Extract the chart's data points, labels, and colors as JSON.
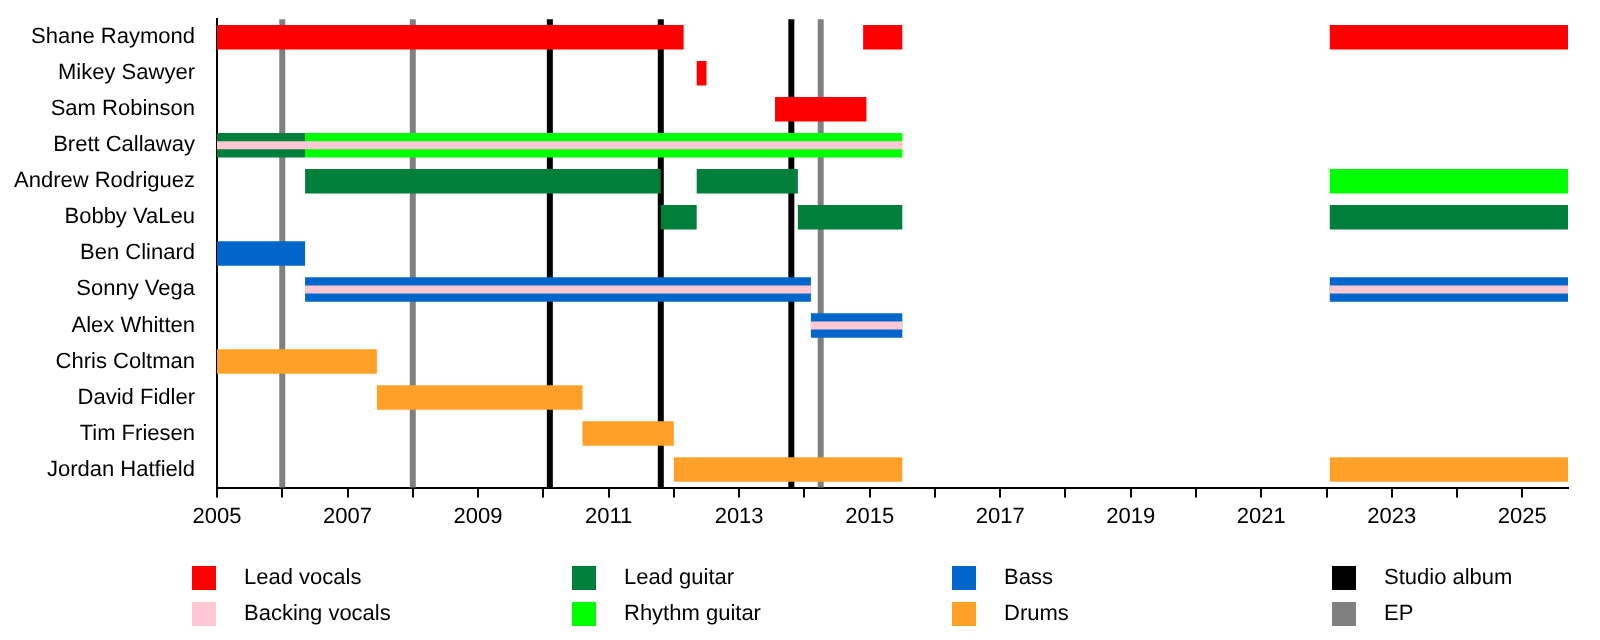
{
  "chart_data": {
    "type": "bar",
    "orientation": "horizontal",
    "grid": false,
    "legend": "bottom",
    "categories": [
      "Shane Raymond",
      "Mikey Sawyer",
      "Sam Robinson",
      "Brett Callaway",
      "Andrew Rodriguez",
      "Bobby VaLeu",
      "Ben Clinard",
      "Sonny Vega",
      "Alex Whitten",
      "Chris Coltman",
      "David Fidler",
      "Tim Friesen",
      "Jordan Hatfield"
    ],
    "xlim": [
      2005,
      2025.7
    ],
    "xticks": [
      2005,
      {
        "value": 2006,
        "label": null
      },
      2007,
      {
        "value": 2008,
        "label": null
      },
      2009,
      {
        "value": 2010,
        "label": null
      },
      2011,
      {
        "value": 2012,
        "label": null
      },
      2013,
      {
        "value": 2014,
        "label": null
      },
      2015,
      {
        "value": 2016,
        "label": null
      },
      2017,
      {
        "value": 2018,
        "label": null
      },
      2019,
      {
        "value": 2020,
        "label": null
      },
      2021,
      {
        "value": 2022,
        "label": null
      },
      2023,
      {
        "value": 2024,
        "label": null
      },
      2025
    ],
    "series": [
      {
        "name": "Lead vocals",
        "color": "#ff0000",
        "base": [
          2005,
          2012.35,
          2013.55,
          null,
          null,
          null,
          null,
          null,
          null,
          null,
          null,
          null,
          null
        ],
        "values": [
          7.15,
          0.15,
          1.4,
          null,
          null,
          null,
          null,
          null,
          null,
          null,
          null,
          null,
          null
        ]
      },
      {
        "color": "#ff0000",
        "base": [
          2014.9,
          null,
          null,
          null,
          null,
          null,
          null,
          null,
          null,
          null,
          null,
          null,
          null
        ],
        "values": [
          0.6,
          null,
          null,
          null,
          null,
          null,
          null,
          null,
          null,
          null,
          null,
          null,
          null
        ]
      },
      {
        "color": "#ff0000",
        "base": [
          2022.05,
          null,
          null,
          null,
          null,
          null,
          null,
          null,
          null,
          null,
          null,
          null,
          null
        ],
        "values": [
          3.65,
          null,
          null,
          null,
          null,
          null,
          null,
          null,
          null,
          null,
          null,
          null,
          null
        ]
      },
      {
        "name": "Backing vocals",
        "color": "#ffc8d2",
        "base": [
          null,
          null,
          null,
          2005,
          null,
          null,
          null,
          2006.35,
          2014.1,
          null,
          null,
          null,
          null
        ],
        "values": [
          null,
          null,
          null,
          10.5,
          null,
          null,
          null,
          7.75,
          1.4,
          null,
          null,
          null,
          null
        ]
      },
      {
        "color": "#ffc8d2",
        "base": [
          null,
          null,
          null,
          null,
          null,
          null,
          null,
          2022.05,
          null,
          null,
          null,
          null,
          null
        ],
        "values": [
          null,
          null,
          null,
          null,
          null,
          null,
          null,
          3.65,
          null,
          null,
          null,
          null,
          null
        ]
      },
      {
        "name": "Lead guitar",
        "color": "#007f3a",
        "base": [
          null,
          null,
          null,
          2005,
          2006.35,
          2011.8,
          null,
          null,
          null,
          null,
          null,
          null,
          null
        ],
        "values": [
          null,
          null,
          null,
          1.35,
          5.45,
          0.55,
          null,
          null,
          null,
          null,
          null,
          null,
          null
        ]
      },
      {
        "color": "#007f3a",
        "base": [
          null,
          null,
          null,
          null,
          2012.35,
          2013.9,
          null,
          null,
          null,
          null,
          null,
          null,
          null
        ],
        "values": [
          null,
          null,
          null,
          null,
          1.55,
          1.6,
          null,
          null,
          null,
          null,
          null,
          null,
          null
        ]
      },
      {
        "color": "#007f3a",
        "base": [
          null,
          null,
          null,
          null,
          null,
          2022.05,
          null,
          null,
          null,
          null,
          null,
          null,
          null
        ],
        "values": [
          null,
          null,
          null,
          null,
          null,
          3.65,
          null,
          null,
          null,
          null,
          null,
          null,
          null
        ]
      },
      {
        "name": "Rhythm guitar",
        "color": "#00ff00",
        "base": [
          null,
          null,
          null,
          2006.35,
          2022.05,
          null,
          null,
          null,
          null,
          null,
          null,
          null,
          null
        ],
        "values": [
          null,
          null,
          null,
          9.15,
          3.65,
          null,
          null,
          null,
          null,
          null,
          null,
          null,
          null
        ]
      },
      {
        "name": "Bass",
        "color": "#0066cc",
        "base": [
          null,
          null,
          null,
          null,
          null,
          null,
          2005,
          2006.35,
          2014.1,
          null,
          null,
          null,
          null
        ],
        "values": [
          null,
          null,
          null,
          null,
          null,
          null,
          1.35,
          7.75,
          1.4,
          null,
          null,
          null,
          null
        ]
      },
      {
        "color": "#0066cc",
        "base": [
          null,
          null,
          null,
          null,
          null,
          null,
          null,
          2022.05,
          null,
          null,
          null,
          null,
          null
        ],
        "values": [
          null,
          null,
          null,
          null,
          null,
          null,
          null,
          3.65,
          null,
          null,
          null,
          null,
          null
        ]
      },
      {
        "name": "Drums",
        "color": "#ffa028",
        "base": [
          null,
          null,
          null,
          null,
          null,
          null,
          null,
          null,
          null,
          2005,
          2007.45,
          2010.6,
          2012
        ],
        "values": [
          null,
          null,
          null,
          null,
          null,
          null,
          null,
          null,
          null,
          2.45,
          3.15,
          1.4,
          3.5
        ]
      },
      {
        "color": "#ffa028",
        "base": [
          null,
          null,
          null,
          null,
          null,
          null,
          null,
          null,
          null,
          null,
          null,
          null,
          2022.05
        ],
        "values": [
          null,
          null,
          null,
          null,
          null,
          null,
          null,
          null,
          null,
          null,
          null,
          null,
          3.65
        ]
      }
    ],
    "ref_lines": [
      {
        "axis": "x",
        "value": 2010.1,
        "color": "#000000",
        "label": "Studio album"
      },
      {
        "axis": "x",
        "value": 2011.8,
        "color": "#000000"
      },
      {
        "axis": "x",
        "value": 2013.8,
        "color": "#000000"
      },
      {
        "axis": "x",
        "value": 2006,
        "color": "#808080",
        "label": "EP"
      },
      {
        "axis": "x",
        "value": 2008,
        "color": "#808080"
      },
      {
        "axis": "x",
        "value": 2014.25,
        "color": "#808080"
      }
    ]
  }
}
